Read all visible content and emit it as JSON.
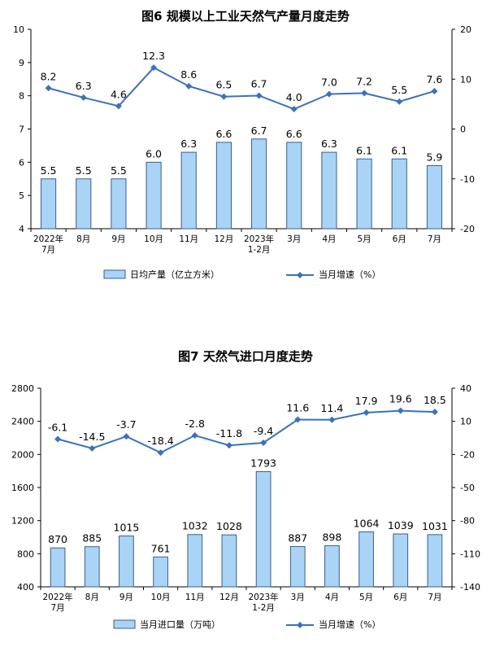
{
  "charts": [
    {
      "type": "bar",
      "title": "图6  规模以上工业天然气产量月度走势",
      "categories": [
        [
          "2022年",
          "7月"
        ],
        [
          "8月"
        ],
        [
          "9月"
        ],
        [
          "10月"
        ],
        [
          "11月"
        ],
        [
          "12月"
        ],
        [
          "2023年",
          "1-2月"
        ],
        [
          "3月"
        ],
        [
          "4月"
        ],
        [
          "5月"
        ],
        [
          "6月"
        ],
        [
          "7月"
        ]
      ],
      "bar_series": {
        "name": "日均产量（亿立方米）",
        "values": [
          5.5,
          5.5,
          5.5,
          6.0,
          6.3,
          6.6,
          6.7,
          6.6,
          6.3,
          6.1,
          6.1,
          5.9
        ],
        "labels": [
          "5.5",
          "5.5",
          "5.5",
          "6.0",
          "6.3",
          "6.6",
          "6.7",
          "6.6",
          "6.3",
          "6.1",
          "6.1",
          "5.9"
        ]
      },
      "line_series": {
        "name": "当月增速（%）",
        "values": [
          8.2,
          6.3,
          4.6,
          12.3,
          8.6,
          6.5,
          6.7,
          4.0,
          7.0,
          7.2,
          5.5,
          7.6
        ],
        "labels": [
          "8.2",
          "6.3",
          "4.6",
          "12.3",
          "8.6",
          "6.5",
          "6.7",
          "4.0",
          "7.0",
          "7.2",
          "5.5",
          "7.6"
        ]
      },
      "y_left": {
        "min": 4,
        "max": 10,
        "ticks": [
          "4",
          "5",
          "6",
          "7",
          "8",
          "9",
          "10"
        ]
      },
      "y_right": {
        "min": -20,
        "max": 20,
        "ticks": [
          "-20",
          "-10",
          "0",
          "10",
          "20"
        ]
      },
      "colors": {
        "bar_fill": "#a9d4f5",
        "bar_stroke": "#3a5e93",
        "line": "#3b72b9"
      }
    },
    {
      "type": "bar",
      "title": "图7  天然气进口月度走势",
      "categories": [
        [
          "2022年",
          "7月"
        ],
        [
          "8月"
        ],
        [
          "9月"
        ],
        [
          "10月"
        ],
        [
          "11月"
        ],
        [
          "12月"
        ],
        [
          "2023年",
          "1-2月"
        ],
        [
          "3月"
        ],
        [
          "4月"
        ],
        [
          "5月"
        ],
        [
          "6月"
        ],
        [
          "7月"
        ]
      ],
      "bar_series": {
        "name": "当月进口量（万吨）",
        "values": [
          870,
          885,
          1015,
          761,
          1032,
          1028,
          1793,
          887,
          898,
          1064,
          1039,
          1031
        ],
        "labels": [
          "870",
          "885",
          "1015",
          "761",
          "1032",
          "1028",
          "1793",
          "887",
          "898",
          "1064",
          "1039",
          "1031"
        ]
      },
      "line_series": {
        "name": "当月增速（%）",
        "values": [
          -6.1,
          -14.5,
          -3.7,
          -18.4,
          -2.8,
          -11.8,
          -9.4,
          11.6,
          11.4,
          17.9,
          19.6,
          18.5
        ],
        "labels": [
          "-6.1",
          "-14.5",
          "-3.7",
          "-18.4",
          "-2.8",
          "-11.8",
          "-9.4",
          "11.6",
          "11.4",
          "17.9",
          "19.6",
          "18.5"
        ]
      },
      "y_left": {
        "min": 400,
        "max": 2800,
        "ticks": [
          "400",
          "800",
          "1200",
          "1600",
          "2000",
          "2400",
          "2800"
        ]
      },
      "y_right": {
        "min": -140,
        "max": 40,
        "ticks": [
          "-140",
          "-110",
          "-80",
          "-50",
          "-20",
          "10",
          "40"
        ]
      },
      "colors": {
        "bar_fill": "#a9d4f5",
        "bar_stroke": "#3a5e93",
        "line": "#3b72b9"
      }
    }
  ]
}
